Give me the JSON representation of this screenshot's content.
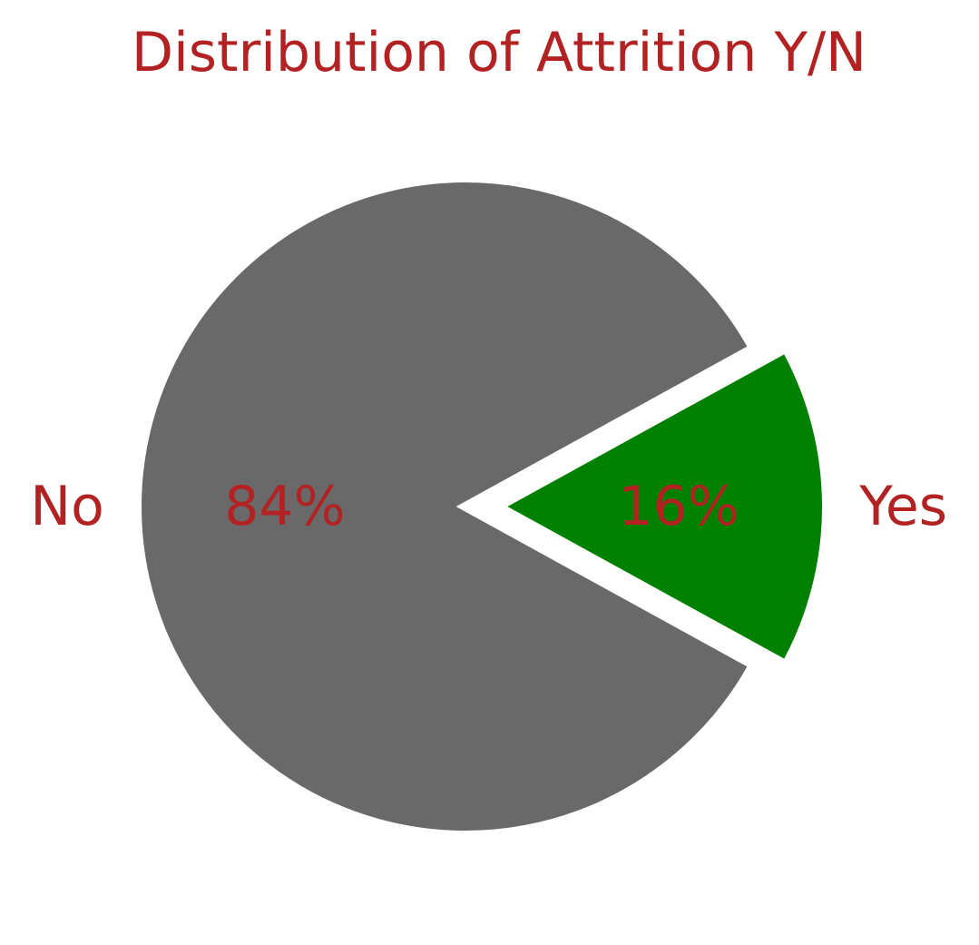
{
  "chart_data": {
    "type": "pie",
    "title": "Distribution of Attrition Y/N",
    "slices": [
      {
        "label": "Yes",
        "value": 16,
        "pct_label": "16%",
        "color": "#008000",
        "exploded": true
      },
      {
        "label": "No",
        "value": 84,
        "pct_label": "84%",
        "color": "#696969",
        "exploded": false
      }
    ],
    "text_color": "#b22222",
    "edge_color": "#ffffff"
  }
}
